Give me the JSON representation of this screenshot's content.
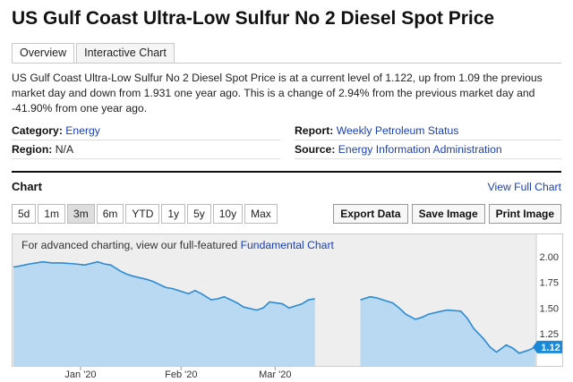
{
  "page": {
    "title": "US Gulf Coast Ultra-Low Sulfur No 2 Diesel Spot Price"
  },
  "tabs": [
    {
      "label": "Overview",
      "active": true
    },
    {
      "label": "Interactive Chart",
      "active": false
    }
  ],
  "summary": "US Gulf Coast Ultra-Low Sulfur No 2 Diesel Spot Price is at a current level of 1.122, up from 1.09 the previous market day and down from 1.931 one year ago. This is a change of 2.94% from the previous market day and -41.90% from one year ago.",
  "meta": {
    "category_label": "Category:",
    "category_value": "Energy",
    "region_label": "Region:",
    "region_value": "N/A",
    "report_label": "Report:",
    "report_value": "Weekly Petroleum Status",
    "source_label": "Source:",
    "source_value": "Energy Information Administration"
  },
  "chart_section": {
    "heading": "Chart",
    "view_full_label": "View Full Chart",
    "ranges": [
      {
        "label": "5d",
        "active": false
      },
      {
        "label": "1m",
        "active": false
      },
      {
        "label": "3m",
        "active": true
      },
      {
        "label": "6m",
        "active": false
      },
      {
        "label": "YTD",
        "active": false
      },
      {
        "label": "1y",
        "active": false
      },
      {
        "label": "5y",
        "active": false
      },
      {
        "label": "10y",
        "active": false
      },
      {
        "label": "Max",
        "active": false
      }
    ],
    "actions": {
      "export": "Export Data",
      "save": "Save Image",
      "print": "Print Image"
    },
    "note_prefix": "For advanced charting, view our full-featured ",
    "note_link": "Fundamental Chart"
  },
  "chart_data": {
    "type": "area",
    "y_ticks": [
      2.0,
      1.75,
      1.5,
      1.25
    ],
    "y_tick_labels": [
      "2.00",
      "1.75",
      "1.50",
      "1.25"
    ],
    "ylim": [
      1.0,
      2.1
    ],
    "x_tick_labels": [
      "Jan '20",
      "Feb '20",
      "Mar '20"
    ],
    "x_tick_dates": [
      "2020-01-01",
      "2020-02-01",
      "2020-03-01"
    ],
    "current_value_label": "1.12",
    "colors": {
      "fill": "#b9d9f2",
      "line": "#2a8ad4",
      "badge": "#1a8ad8"
    },
    "series": [
      {
        "values": [
          [
            "2019-12-11",
            1.9
          ],
          [
            "2019-12-13",
            1.91
          ],
          [
            "2019-12-16",
            1.93
          ],
          [
            "2019-12-18",
            1.94
          ],
          [
            "2019-12-20",
            1.95
          ],
          [
            "2019-12-23",
            1.94
          ],
          [
            "2019-12-26",
            1.94
          ],
          [
            "2019-12-30",
            1.93
          ],
          [
            "2020-01-02",
            1.92
          ],
          [
            "2020-01-06",
            1.95
          ],
          [
            "2020-01-08",
            1.93
          ],
          [
            "2020-01-10",
            1.92
          ],
          [
            "2020-01-13",
            1.86
          ],
          [
            "2020-01-15",
            1.83
          ],
          [
            "2020-01-17",
            1.81
          ],
          [
            "2020-01-21",
            1.78
          ],
          [
            "2020-01-23",
            1.76
          ],
          [
            "2020-01-27",
            1.7
          ],
          [
            "2020-01-29",
            1.69
          ],
          [
            "2020-02-03",
            1.64
          ],
          [
            "2020-02-05",
            1.67
          ],
          [
            "2020-02-07",
            1.64
          ],
          [
            "2020-02-10",
            1.58
          ],
          [
            "2020-02-12",
            1.59
          ],
          [
            "2020-02-14",
            1.61
          ],
          [
            "2020-02-18",
            1.55
          ],
          [
            "2020-02-20",
            1.51
          ],
          [
            "2020-02-24",
            1.48
          ],
          [
            "2020-02-26",
            1.5
          ],
          [
            "2020-02-28",
            1.56
          ],
          [
            "2020-03-03",
            1.54
          ],
          [
            "2020-03-05",
            1.5
          ],
          [
            "2020-03-09",
            1.54
          ],
          [
            "2020-03-11",
            1.58
          ],
          [
            "2020-03-13",
            1.59
          ]
        ]
      },
      {
        "values": [
          [
            "2020-03-27",
            1.58
          ],
          [
            "2020-03-30",
            1.61
          ],
          [
            "2020-04-01",
            1.6
          ],
          [
            "2020-04-03",
            1.58
          ],
          [
            "2020-04-06",
            1.55
          ],
          [
            "2020-04-08",
            1.5
          ],
          [
            "2020-04-10",
            1.44
          ],
          [
            "2020-04-13",
            1.39
          ],
          [
            "2020-04-15",
            1.41
          ],
          [
            "2020-04-17",
            1.44
          ],
          [
            "2020-04-21",
            1.47
          ],
          [
            "2020-04-23",
            1.48
          ],
          [
            "2020-04-27",
            1.47
          ],
          [
            "2020-04-29",
            1.4
          ],
          [
            "2020-05-01",
            1.3
          ],
          [
            "2020-05-04",
            1.2
          ],
          [
            "2020-05-06",
            1.12
          ],
          [
            "2020-05-08",
            1.07
          ],
          [
            "2020-05-11",
            1.14
          ],
          [
            "2020-05-13",
            1.11
          ],
          [
            "2020-05-15",
            1.06
          ],
          [
            "2020-05-18",
            1.09
          ],
          [
            "2020-05-20",
            1.12
          ]
        ]
      }
    ]
  }
}
